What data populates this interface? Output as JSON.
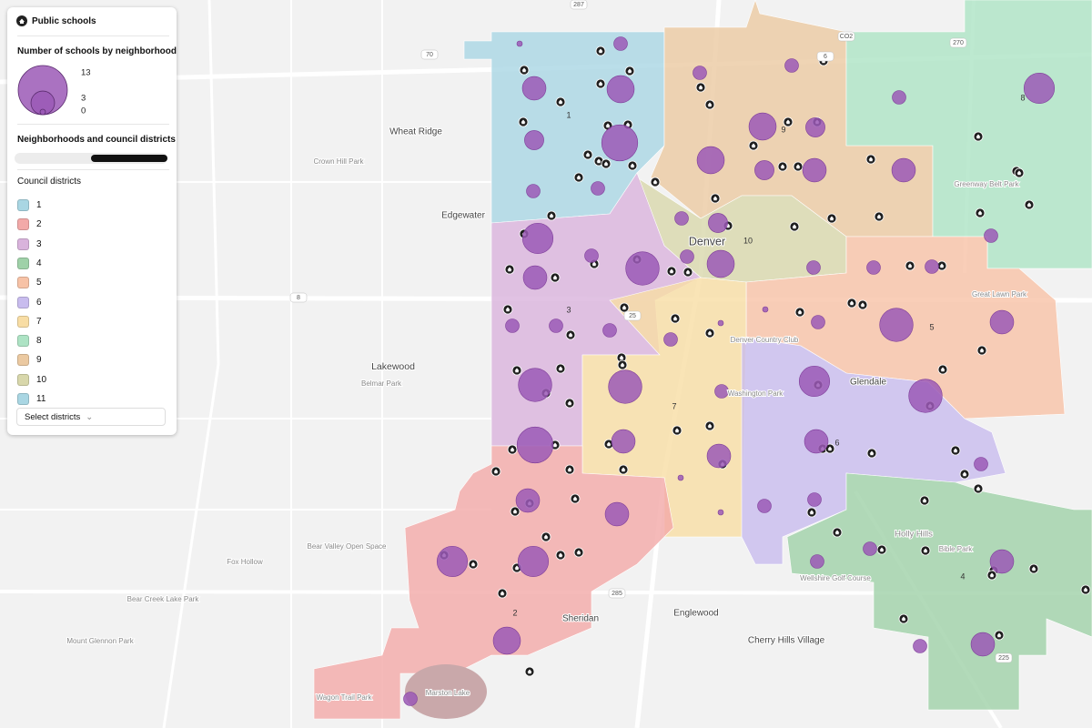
{
  "panel": {
    "title": "Public schools",
    "size_legend": {
      "title": "Number of schools by neighborhood",
      "values": [
        13,
        3,
        0
      ]
    },
    "layers_title": "Neighborhoods and council districts",
    "districts_title": "Council districts",
    "districts": [
      {
        "label": "1",
        "color": "#a9d6e3"
      },
      {
        "label": "2",
        "color": "#f2a9a8"
      },
      {
        "label": "3",
        "color": "#d9b3dc"
      },
      {
        "label": "4",
        "color": "#9fd1a8"
      },
      {
        "label": "5",
        "color": "#f7c2a6"
      },
      {
        "label": "6",
        "color": "#c8bcee"
      },
      {
        "label": "7",
        "color": "#f8dda4"
      },
      {
        "label": "8",
        "color": "#ade3c4"
      },
      {
        "label": "9",
        "color": "#ebc9a1"
      },
      {
        "label": "10",
        "color": "#d8d7ab"
      },
      {
        "label": "11",
        "color": "#a9d6e3"
      }
    ],
    "select": "Select districts"
  },
  "map": {
    "bubble_color": "#9b59b6",
    "bubbles": {
      "values": [
        1,
        3,
        4,
        7,
        2,
        1,
        1,
        1,
        1,
        4,
        2,
        4,
        2,
        3,
        3,
        1,
        5,
        5,
        1,
        3,
        6,
        1,
        2,
        4,
        1,
        1,
        1,
        1,
        6,
        3,
        1,
        1,
        1,
        1,
        1,
        6,
        6,
        1,
        5,
        6,
        7,
        3,
        3,
        3,
        1,
        3,
        3,
        1,
        1,
        5,
        5,
        4,
        1,
        3,
        1,
        1,
        3,
        1,
        1,
        0,
        0,
        0,
        0,
        0
      ]
    },
    "labels": [
      "Wheat Ridge",
      "Edgewater",
      "Lakewood",
      "Denver",
      "Glendale",
      "Sheridan",
      "Englewood",
      "Cherry Hills Village",
      "Holly Hills",
      "Crown Hill Park",
      "Belmar Park",
      "Bear Valley Open Space",
      "Fox Hollow",
      "Bear Creek Lake Park",
      "Marston Lake",
      "Wagon Trail Park",
      "Greenway Belt Park",
      "Great Lawn Park",
      "Bible Park",
      "Denver Country Club",
      "Washington Park",
      "Wellshire Golf Course",
      "Mount Glennon Park"
    ],
    "roads": [
      "70",
      "287",
      "270",
      "25",
      "285",
      "225",
      "6",
      "CO2",
      "8"
    ]
  }
}
